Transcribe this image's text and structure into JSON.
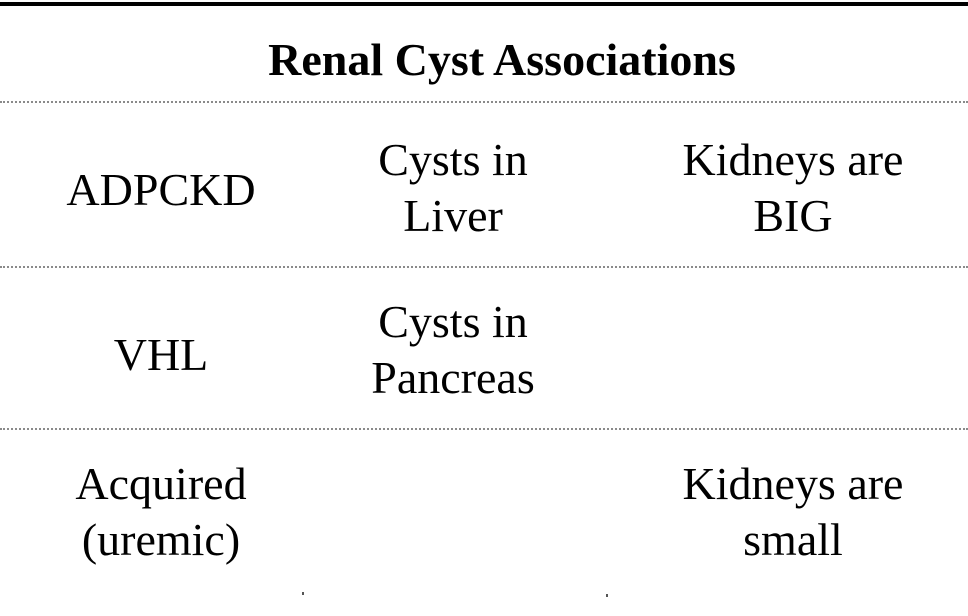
{
  "title": "Renal Cyst Associations",
  "rows": [
    {
      "condition": [
        "ADPCKD"
      ],
      "cysts": [
        "Cysts in",
        "Liver"
      ],
      "kidneys": [
        "Kidneys are",
        "BIG"
      ]
    },
    {
      "condition": [
        "VHL"
      ],
      "cysts": [
        "Cysts in",
        "Pancreas"
      ],
      "kidneys": []
    },
    {
      "condition": [
        "Acquired",
        "(uremic)"
      ],
      "cysts": [],
      "kidneys": [
        "Kidneys are",
        "small"
      ]
    }
  ]
}
